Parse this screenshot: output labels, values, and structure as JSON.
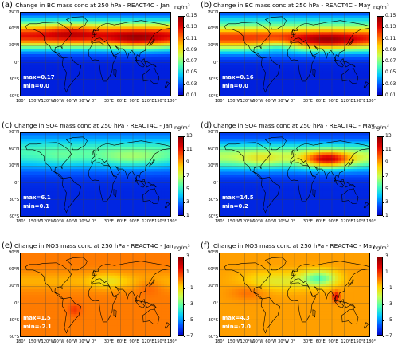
{
  "unit": "ng/m",
  "unit_sup": "3",
  "lat_labels": [
    "90°N",
    "60°N",
    "30°N",
    "0°",
    "30°S",
    "60°S"
  ],
  "lon_labels": [
    "180°",
    "150°W",
    "120°W",
    "90°W",
    "60°W",
    "30°W",
    "0°",
    "30°E",
    "60°E",
    "90°E",
    "120°E",
    "150°E",
    "180°"
  ],
  "colors": {
    "colormap": [
      "#0000c8",
      "#0050ff",
      "#00c8ff",
      "#50ffb0",
      "#c8ff50",
      "#ffd000",
      "#ff6000",
      "#e00000",
      "#8c0000"
    ],
    "coastline": "#000000",
    "stat_text": "#ffffff"
  },
  "panels": [
    {
      "letter": "(a)",
      "title": "Change in BC mass conc at 250 hPa - REACT4C - Jan",
      "ticks": [
        "0.15",
        "0.13",
        "0.11",
        "0.09",
        "0.07",
        "0.05",
        "0.03",
        "0.01"
      ],
      "max": "max=0.17",
      "min": "min=0.0",
      "colorbar_min": 0.01,
      "colorbar_max": 0.15,
      "field": "bc-jan"
    },
    {
      "letter": "(b)",
      "title": "Change in BC mass conc at 250 hPa - REACT4C - May",
      "ticks": [
        "0.15",
        "0.13",
        "0.11",
        "0.09",
        "0.07",
        "0.05",
        "0.03",
        "0.01"
      ],
      "max": "max=0.16",
      "min": "min=0.0",
      "colorbar_min": 0.01,
      "colorbar_max": 0.15,
      "field": "bc-may"
    },
    {
      "letter": "(c)",
      "title": "Change in SO4 mass conc at 250 hPa - REACT4C - Jan",
      "ticks": [
        "13",
        "11",
        "9",
        "7",
        "5",
        "3",
        "1"
      ],
      "max": "max=6.1",
      "min": "min=0.1",
      "colorbar_min": 1,
      "colorbar_max": 13,
      "field": "so4-jan"
    },
    {
      "letter": "(d)",
      "title": "Change in SO4 mass conc at 250 hPa - REACT4C - May",
      "ticks": [
        "13",
        "11",
        "9",
        "7",
        "5",
        "3",
        "1"
      ],
      "max": "max=14.5",
      "min": "min=0.2",
      "colorbar_min": 1,
      "colorbar_max": 13,
      "field": "so4-may"
    },
    {
      "letter": "(e)",
      "title": "Change in NO3 mass conc at 250 hPa - REACT4C - Jan",
      "ticks": [
        "3",
        "1",
        "−1",
        "−3",
        "−5",
        "−7"
      ],
      "max": "max=1.5",
      "min": "min=-2.1",
      "colorbar_min": -7,
      "colorbar_max": 3,
      "field": "no3-jan"
    },
    {
      "letter": "(f)",
      "title": "Change in NO3 mass conc at 250 hPa - REACT4C - May",
      "ticks": [
        "3",
        "1",
        "−1",
        "−3",
        "−5",
        "−7"
      ],
      "max": "max=4.3",
      "min": "min=-7.0",
      "colorbar_min": -7,
      "colorbar_max": 3,
      "field": "no3-may"
    }
  ]
}
